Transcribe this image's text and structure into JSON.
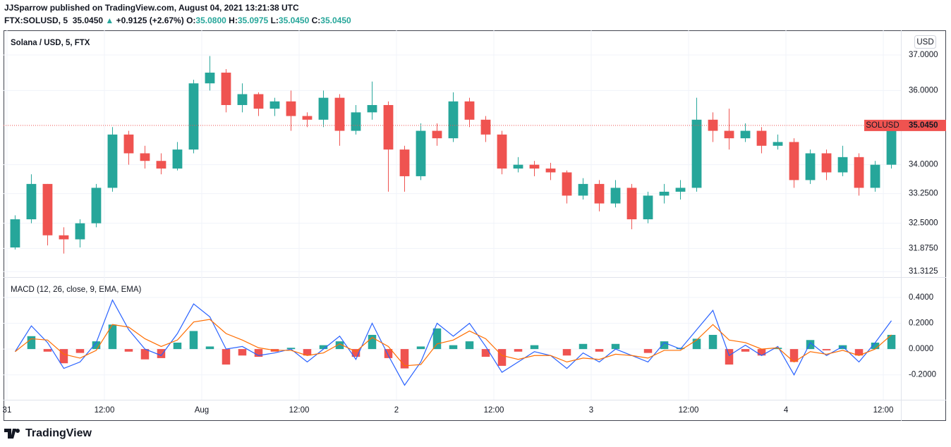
{
  "header": {
    "publisher": "JJSparrow published on TradingView.com, August 04, 2021 13:21:38 UTC",
    "symbol": "FTX:SOLUSD, 5",
    "price": "35.0450",
    "arrow": "▲",
    "change": "+0.9125 (+2.67%)",
    "ohlc": [
      {
        "label": "O:",
        "value": "35.0800"
      },
      {
        "label": "H:",
        "value": "35.0975"
      },
      {
        "label": "L:",
        "value": "35.0450"
      },
      {
        "label": "C:",
        "value": "35.0450"
      }
    ]
  },
  "footer": {
    "brand": "TradingView"
  },
  "chart_data": [
    {
      "type": "candlestick",
      "title": "Solana / USD, 5, FTX",
      "currency": "USD",
      "log_scale": true,
      "up_color": "#26a69a",
      "down_color": "#ef5350",
      "x": [
        1,
        3,
        5,
        7,
        9,
        11,
        13,
        15,
        17,
        19,
        21,
        23,
        25,
        27,
        29,
        31,
        33,
        35,
        37,
        39,
        41,
        43,
        45,
        47,
        49,
        51,
        53,
        55,
        57,
        59,
        61,
        63,
        65,
        67,
        69,
        71,
        73,
        75,
        77,
        79,
        81,
        83,
        85,
        87,
        89,
        91,
        93,
        95,
        97,
        99,
        101,
        103,
        105,
        107,
        109
      ],
      "open": [
        31.9,
        32.6,
        33.5,
        32.2,
        32.1,
        32.5,
        33.4,
        34.8,
        34.3,
        34.1,
        33.9,
        34.4,
        36.2,
        36.5,
        35.6,
        35.9,
        35.5,
        35.7,
        35.3,
        35.2,
        35.8,
        34.9,
        35.4,
        35.6,
        34.4,
        33.7,
        34.9,
        34.7,
        35.7,
        35.2,
        34.8,
        33.9,
        34.0,
        33.9,
        33.8,
        33.2,
        33.5,
        33.0,
        33.4,
        32.6,
        33.2,
        33.3,
        33.4,
        35.2,
        34.9,
        34.7,
        34.9,
        34.5,
        34.6,
        33.6,
        34.3,
        33.8,
        34.2,
        33.4,
        34.0
      ],
      "high": [
        32.7,
        33.75,
        33.5,
        32.4,
        32.6,
        33.5,
        35.0,
        34.9,
        34.5,
        34.3,
        34.6,
        36.3,
        36.97,
        36.6,
        36.2,
        35.95,
        35.8,
        36.0,
        35.4,
        36.0,
        35.9,
        35.6,
        36.25,
        35.7,
        34.5,
        35.1,
        35.1,
        35.95,
        35.8,
        35.3,
        34.9,
        34.2,
        34.1,
        34.05,
        33.85,
        33.65,
        33.6,
        33.6,
        33.5,
        33.3,
        33.5,
        33.6,
        35.8,
        35.4,
        35.5,
        35.1,
        35.0,
        34.8,
        34.7,
        34.4,
        34.4,
        34.5,
        34.3,
        34.1,
        35.1
      ],
      "low": [
        31.85,
        32.5,
        31.95,
        31.75,
        31.9,
        32.4,
        33.3,
        34.0,
        33.9,
        33.75,
        33.85,
        34.3,
        36.0,
        35.4,
        35.4,
        35.3,
        35.3,
        34.9,
        35.0,
        35.0,
        34.5,
        34.8,
        35.2,
        33.3,
        33.3,
        33.6,
        34.5,
        34.6,
        35.0,
        34.6,
        33.75,
        33.8,
        33.7,
        33.6,
        33.0,
        33.1,
        32.8,
        32.9,
        32.35,
        32.5,
        33.0,
        33.1,
        33.3,
        34.6,
        34.4,
        34.6,
        34.3,
        34.4,
        33.4,
        33.5,
        33.6,
        33.7,
        33.2,
        33.3,
        33.9
      ],
      "close": [
        32.6,
        33.5,
        32.2,
        32.1,
        32.5,
        33.4,
        34.8,
        34.3,
        34.1,
        33.9,
        34.4,
        36.2,
        36.5,
        35.6,
        35.9,
        35.5,
        35.7,
        35.3,
        35.2,
        35.8,
        34.9,
        35.4,
        35.6,
        34.4,
        33.7,
        34.9,
        34.7,
        35.7,
        35.2,
        34.8,
        33.9,
        34.0,
        33.9,
        33.8,
        33.2,
        33.5,
        33.0,
        33.4,
        32.6,
        33.2,
        33.3,
        33.4,
        35.2,
        34.9,
        34.7,
        34.9,
        34.5,
        34.6,
        33.6,
        34.3,
        33.8,
        34.2,
        33.4,
        34.0,
        35.045
      ],
      "last_price": {
        "value": 35.045,
        "label": "35.0450",
        "symbol": "SOLUSD"
      },
      "xlim": [
        -0.43,
        110.17
      ],
      "ylim": [
        31.18,
        37.71
      ],
      "yticks": [
        {
          "value": 37,
          "label": "37.0000"
        },
        {
          "value": 36,
          "label": "36.0000"
        },
        {
          "value": 34,
          "label": "34.0000"
        },
        {
          "value": 33.25,
          "label": "33.2500"
        },
        {
          "value": 32.5,
          "label": "32.5000"
        },
        {
          "value": 31.875,
          "label": "31.8750"
        },
        {
          "value": 31.3125,
          "label": "31.3125"
        }
      ],
      "xticks": [
        {
          "value": 0,
          "label": "31"
        },
        {
          "value": 12,
          "label": "12:00"
        },
        {
          "value": 24,
          "label": "Aug"
        },
        {
          "value": 36,
          "label": "12:00"
        },
        {
          "value": 48,
          "label": "2"
        },
        {
          "value": 60,
          "label": "12:00"
        },
        {
          "value": 72,
          "label": "3"
        },
        {
          "value": 84,
          "label": "12:00"
        },
        {
          "value": 96,
          "label": "4"
        },
        {
          "value": 108,
          "label": "12:00"
        }
      ]
    },
    {
      "type": "macd",
      "title": "MACD (12, 26, close, 9, EMA, EMA)",
      "macd_color": "#2962ff",
      "signal_color": "#ff6d00",
      "histogram_up_color": "#26a69a",
      "histogram_down_color": "#ef5350",
      "x": [
        1,
        3,
        5,
        7,
        9,
        11,
        13,
        15,
        17,
        19,
        21,
        23,
        25,
        27,
        29,
        31,
        33,
        35,
        37,
        39,
        41,
        43,
        45,
        47,
        49,
        51,
        53,
        55,
        57,
        59,
        61,
        63,
        65,
        67,
        69,
        71,
        73,
        75,
        77,
        79,
        81,
        83,
        85,
        87,
        89,
        91,
        93,
        95,
        97,
        99,
        101,
        103,
        105,
        107,
        109
      ],
      "macd": [
        -0.02,
        0.18,
        0.05,
        -0.15,
        -0.1,
        0.05,
        0.38,
        0.15,
        0.0,
        -0.05,
        0.12,
        0.35,
        0.25,
        0.0,
        0.02,
        -0.05,
        -0.03,
        0.0,
        -0.1,
        0.0,
        0.1,
        -0.08,
        0.2,
        -0.05,
        -0.28,
        -0.1,
        0.2,
        0.1,
        0.2,
        0.02,
        -0.18,
        -0.1,
        -0.02,
        -0.05,
        -0.15,
        -0.03,
        -0.1,
        0.0,
        -0.05,
        -0.1,
        0.05,
        0.0,
        0.15,
        0.3,
        -0.05,
        0.03,
        -0.05,
        0.02,
        -0.2,
        0.05,
        -0.05,
        0.02,
        -0.1,
        0.05,
        0.22
      ],
      "signal": [
        -0.02,
        0.08,
        0.07,
        -0.04,
        -0.07,
        -0.01,
        0.19,
        0.17,
        0.08,
        0.02,
        0.07,
        0.21,
        0.23,
        0.12,
        0.07,
        0.01,
        -0.01,
        -0.01,
        -0.05,
        -0.03,
        0.04,
        -0.02,
        0.09,
        0.02,
        -0.13,
        -0.12,
        0.04,
        0.07,
        0.14,
        0.08,
        -0.05,
        -0.08,
        -0.05,
        -0.05,
        -0.1,
        -0.07,
        -0.08,
        -0.04,
        -0.05,
        -0.07,
        -0.01,
        -0.01,
        0.07,
        0.19,
        0.07,
        0.05,
        0.0,
        0.01,
        -0.1,
        -0.02,
        -0.04,
        -0.01,
        -0.05,
        0.0,
        0.11
      ],
      "histogram": [
        0.0,
        0.1,
        -0.02,
        -0.11,
        -0.03,
        0.06,
        0.19,
        -0.02,
        -0.08,
        -0.07,
        0.05,
        0.14,
        0.02,
        -0.12,
        -0.05,
        -0.06,
        -0.02,
        0.01,
        -0.05,
        0.03,
        0.06,
        -0.06,
        0.11,
        -0.07,
        -0.15,
        0.02,
        0.16,
        0.03,
        0.06,
        -0.06,
        -0.13,
        -0.02,
        0.03,
        0.0,
        -0.05,
        0.04,
        -0.02,
        0.04,
        0.0,
        -0.03,
        0.06,
        0.01,
        0.08,
        0.11,
        -0.12,
        -0.02,
        -0.05,
        0.01,
        -0.1,
        0.07,
        -0.01,
        0.03,
        -0.05,
        0.05,
        0.11
      ],
      "xlim": [
        -0.43,
        110.17
      ],
      "ylim": [
        -0.393,
        0.558
      ],
      "yticks": [
        {
          "value": 0.4,
          "label": "0.4000"
        },
        {
          "value": 0.2,
          "label": "0.2000"
        },
        {
          "value": 0,
          "label": "0.0000"
        },
        {
          "value": -0.2,
          "label": "-0.2000"
        }
      ]
    }
  ]
}
